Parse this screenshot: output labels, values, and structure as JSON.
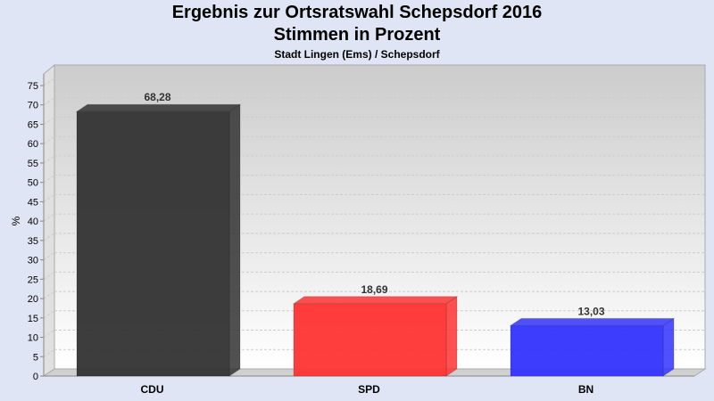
{
  "chart_data": {
    "type": "bar",
    "title": "Ergebnis zur Ortsratswahl Schepsdorf 2016",
    "subtitle": "Stimmen in Prozent",
    "caption": "Stadt Lingen (Ems) / Schepsdorf",
    "ylabel": "%",
    "xlabel": "",
    "ylim": [
      0,
      75
    ],
    "yticks": [
      "0",
      "5",
      "10",
      "15",
      "20",
      "25",
      "30",
      "35",
      "40",
      "45",
      "50",
      "55",
      "60",
      "65",
      "70",
      "75"
    ],
    "categories": [
      "CDU",
      "SPD",
      "BN"
    ],
    "values": [
      68.28,
      18.69,
      13.03
    ],
    "value_labels": [
      "68,28",
      "18,69",
      "13,03"
    ],
    "colors": [
      "#333333",
      "#ff3333",
      "#3333ff"
    ],
    "grid": true
  }
}
